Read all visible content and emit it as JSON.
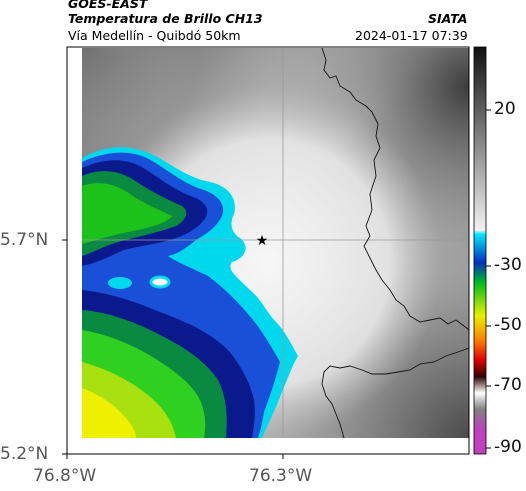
{
  "header": {
    "satellite": "GOES-EAST",
    "product": "Temperatura de Brillo CH13",
    "institution": "SIATA",
    "region": "Vía Medellín - Quibdó 50km",
    "datetime": "2024-01-17 07:39"
  },
  "axes": {
    "y_ticks": [
      {
        "value": 5.7,
        "label": "5.7°N"
      },
      {
        "value": 5.2,
        "label": "5.2°N"
      }
    ],
    "x_ticks": [
      {
        "value": -76.8,
        "label": "76.8°W"
      },
      {
        "value": -76.3,
        "label": "76.3°W"
      }
    ]
  },
  "marker": {
    "symbol": "★",
    "name": "star-marker"
  },
  "colorbar": {
    "ticks": [
      "20",
      "-30",
      "-50",
      "-70",
      "-90"
    ]
  },
  "colors": {
    "cloud_deep_blue": "#0a1a8c",
    "cyan": "#00e0f0",
    "green": "#18c020",
    "yellow": "#f0f000",
    "gray_scale_low": "#3a3a3a",
    "gray_scale_high": "#f4f4f4"
  }
}
